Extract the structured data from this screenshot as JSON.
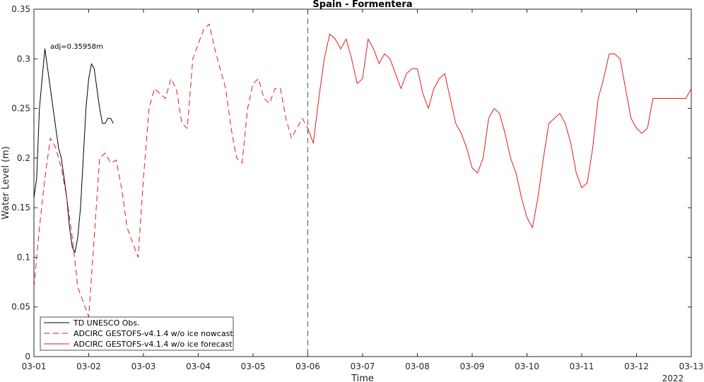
{
  "chart_data": {
    "type": "line",
    "title": "Spain - Formentera",
    "xlabel": "Time",
    "ylabel": "Water Level (m)",
    "year_label": "2022",
    "xlim": [
      0,
      12
    ],
    "ylim": [
      0,
      0.35
    ],
    "x_ticks": [
      0,
      1,
      2,
      3,
      4,
      5,
      6,
      7,
      8,
      9,
      10,
      11,
      12
    ],
    "x_tick_labels": [
      "03-01",
      "03-02",
      "03-03",
      "03-04",
      "03-05",
      "03-06",
      "03-07",
      "03-08",
      "03-09",
      "03-10",
      "03-11",
      "03-12",
      "03-13"
    ],
    "y_ticks": [
      0,
      0.05,
      0.1,
      0.15,
      0.2,
      0.25,
      0.3,
      0.35
    ],
    "y_tick_labels": [
      "0",
      "0.05",
      "0.1",
      "0.15",
      "0.2",
      "0.25",
      "0.3",
      "0.35"
    ],
    "nowcast_end": 5,
    "annotation": "adj=0.35958m",
    "legend_position": "bottom-left",
    "series": [
      {
        "name": "TD UNESCO Obs.",
        "color": "#000000",
        "style": "solid",
        "x": [
          0,
          0.05,
          0.1,
          0.15,
          0.2,
          0.25,
          0.3,
          0.35,
          0.4,
          0.45,
          0.5,
          0.55,
          0.6,
          0.65,
          0.7,
          0.75,
          0.8,
          0.85,
          0.9,
          0.95,
          1.0,
          1.05,
          1.1,
          1.15,
          1.2,
          1.25,
          1.3,
          1.35,
          1.4,
          1.45
        ],
        "y": [
          0.16,
          0.18,
          0.25,
          0.28,
          0.31,
          0.29,
          0.27,
          0.25,
          0.23,
          0.21,
          0.2,
          0.18,
          0.16,
          0.13,
          0.11,
          0.105,
          0.12,
          0.15,
          0.2,
          0.25,
          0.28,
          0.295,
          0.29,
          0.27,
          0.25,
          0.235,
          0.235,
          0.24,
          0.24,
          0.235
        ]
      },
      {
        "name": "ADCIRC GESTOFS-v4.1.4 w/o ice nowcast",
        "color": "#e41a1c",
        "style": "dashed",
        "x": [
          0,
          0.1,
          0.2,
          0.3,
          0.4,
          0.5,
          0.6,
          0.7,
          0.8,
          0.9,
          1.0,
          1.1,
          1.2,
          1.3,
          1.4,
          1.5,
          1.6,
          1.7,
          1.8,
          1.9,
          2.0,
          2.1,
          2.2,
          2.3,
          2.4,
          2.5,
          2.6,
          2.7,
          2.8,
          2.9,
          3.0,
          3.1,
          3.2,
          3.3,
          3.4,
          3.5,
          3.6,
          3.7,
          3.8,
          3.9,
          4.0,
          4.1,
          4.2,
          4.3,
          4.4,
          4.5,
          4.6,
          4.7,
          4.8,
          4.9,
          5.0
        ],
        "y": [
          0.07,
          0.13,
          0.18,
          0.22,
          0.21,
          0.19,
          0.16,
          0.12,
          0.07,
          0.055,
          0.04,
          0.12,
          0.2,
          0.205,
          0.195,
          0.198,
          0.17,
          0.13,
          0.115,
          0.1,
          0.18,
          0.25,
          0.27,
          0.265,
          0.26,
          0.28,
          0.27,
          0.235,
          0.23,
          0.3,
          0.315,
          0.33,
          0.335,
          0.31,
          0.29,
          0.27,
          0.23,
          0.2,
          0.195,
          0.25,
          0.275,
          0.28,
          0.26,
          0.255,
          0.27,
          0.27,
          0.24,
          0.22,
          0.23,
          0.24,
          0.23
        ]
      },
      {
        "name": "ADCIRC GESTOFS-v4.1.4 w/o ice forecast",
        "color": "#e41a1c",
        "style": "solid",
        "x": [
          5.0,
          5.1,
          5.2,
          5.3,
          5.4,
          5.5,
          5.6,
          5.7,
          5.8,
          5.9,
          6.0,
          6.1,
          6.2,
          6.3,
          6.4,
          6.5,
          6.6,
          6.7,
          6.8,
          6.9,
          7.0,
          7.1,
          7.2,
          7.3,
          7.4,
          7.5,
          7.6,
          7.7,
          7.8,
          7.9,
          8.0,
          8.1,
          8.2,
          8.3,
          8.4,
          8.5,
          8.6,
          8.7,
          8.8,
          8.9,
          9.0,
          9.1,
          9.2,
          9.3,
          9.4,
          9.5,
          9.6,
          9.7,
          9.8,
          9.9,
          10.0,
          10.1,
          10.2,
          10.3,
          10.4,
          10.5,
          10.6,
          10.7,
          10.8,
          10.9,
          11.0,
          11.1,
          11.2,
          11.3,
          11.4,
          11.5,
          11.6,
          11.7,
          11.8,
          11.9,
          12.0
        ],
        "y": [
          0.23,
          0.215,
          0.26,
          0.3,
          0.325,
          0.32,
          0.31,
          0.32,
          0.3,
          0.275,
          0.28,
          0.32,
          0.31,
          0.295,
          0.305,
          0.3,
          0.285,
          0.27,
          0.285,
          0.29,
          0.29,
          0.265,
          0.25,
          0.27,
          0.28,
          0.285,
          0.26,
          0.235,
          0.225,
          0.21,
          0.19,
          0.185,
          0.2,
          0.24,
          0.25,
          0.245,
          0.225,
          0.2,
          0.185,
          0.16,
          0.14,
          0.13,
          0.16,
          0.2,
          0.235,
          0.24,
          0.245,
          0.235,
          0.215,
          0.185,
          0.17,
          0.175,
          0.21,
          0.26,
          0.28,
          0.305,
          0.305,
          0.3,
          0.27,
          0.24,
          0.23,
          0.225,
          0.23,
          0.26,
          0.26,
          0.26,
          0.26,
          0.26,
          0.26,
          0.26,
          0.27
        ]
      }
    ]
  }
}
